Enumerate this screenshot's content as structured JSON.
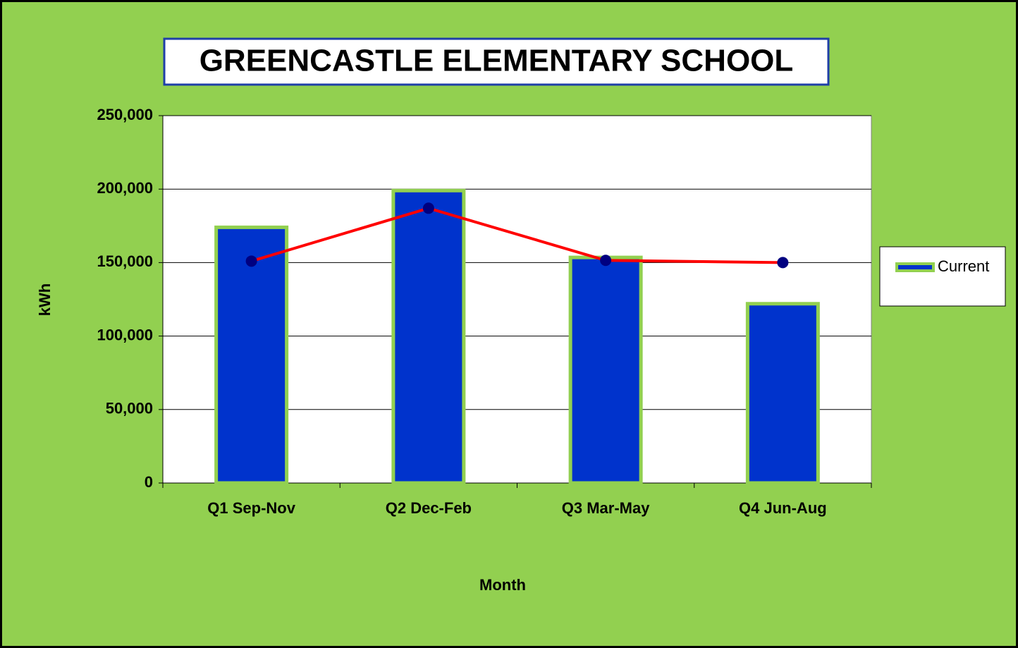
{
  "chart_data": {
    "type": "bar+line",
    "title": "GREENCASTLE ELEMENTARY SCHOOL",
    "xlabel": "Month",
    "ylabel": "kWh",
    "categories": [
      "Q1 Sep-Nov",
      "Q2 Dec-Feb",
      "Q3 Mar-May",
      "Q4 Jun-Aug"
    ],
    "series": [
      {
        "name": "Current",
        "type": "bar",
        "color": "#0033cc",
        "edge_color": "#92d050",
        "values": [
          174000,
          199000,
          153500,
          122000
        ]
      },
      {
        "type": "line",
        "color": "#ff0000",
        "marker_color": "#000080",
        "values": [
          151000,
          187000,
          151500,
          150000
        ]
      }
    ],
    "ylim": [
      0,
      250000
    ],
    "yticks": [
      0,
      {
        "value": 50000,
        "label": "50,000"
      },
      {
        "value": 100000,
        "label": "100,000"
      },
      {
        "value": 150000,
        "label": "150,000"
      },
      {
        "value": 200000,
        "label": "200,000"
      },
      {
        "value": 250000,
        "label": "250,000"
      }
    ],
    "grid": true,
    "legend": "right",
    "background": "#92d050"
  }
}
